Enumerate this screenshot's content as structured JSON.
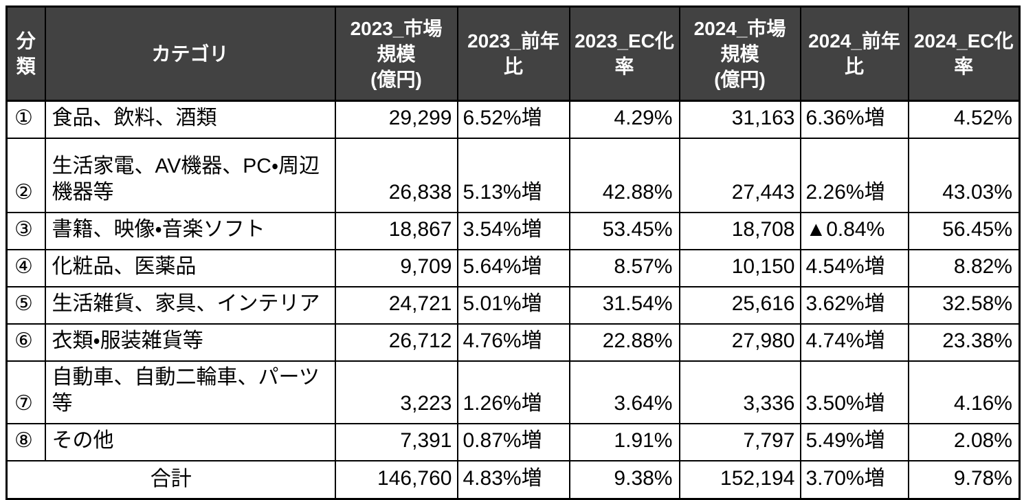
{
  "colors": {
    "header_bg": "#424242",
    "header_text": "#ffffff",
    "border": "#000000",
    "body_bg": "#ffffff",
    "text": "#000000"
  },
  "table": {
    "header": {
      "labels": [
        "分類",
        "カテゴリ",
        "2023_市場\n規模\n(億円)",
        "2023_前年\n比",
        "2023_EC化\n率",
        "2024_市場\n規模\n(億円)",
        "2024_前年\n比",
        "2024_EC化\n率"
      ]
    },
    "rows": [
      {
        "no": "①",
        "category": "食品、飲料、酒類",
        "tall": false,
        "v": [
          "29,299",
          "6.52%増",
          "4.29%",
          "31,163",
          "6.36%増",
          "4.52%"
        ]
      },
      {
        "no": "②",
        "category": "生活家電、AV機器、PC・周辺\n機器等",
        "tall": true,
        "v": [
          "26,838",
          "5.13%増",
          "42.88%",
          "27,443",
          "2.26%増",
          "43.03%"
        ]
      },
      {
        "no": "③",
        "category": "書籍、映像・音楽ソフト",
        "tall": false,
        "v": [
          "18,867",
          "3.54%増",
          "53.45%",
          "18,708",
          "▲0.84%",
          "56.45%"
        ]
      },
      {
        "no": "④",
        "category": "化粧品、医薬品",
        "tall": false,
        "v": [
          "9,709",
          "5.64%増",
          "8.57%",
          "10,150",
          "4.54%増",
          "8.82%"
        ]
      },
      {
        "no": "⑤",
        "category": "生活雑貨、家具、インテリア",
        "tall": false,
        "v": [
          "24,721",
          "5.01%増",
          "31.54%",
          "25,616",
          "3.62%増",
          "32.58%"
        ]
      },
      {
        "no": "⑥",
        "category": "衣類・服装雑貨等",
        "tall": false,
        "v": [
          "26,712",
          "4.76%増",
          "22.88%",
          "27,980",
          "4.74%増",
          "23.38%"
        ]
      },
      {
        "no": "⑦",
        "category": "自動車、自動二輪車、パーツ等",
        "tall": false,
        "v": [
          "3,223",
          "1.26%増",
          "3.64%",
          "3,336",
          "3.50%増",
          "4.16%"
        ]
      },
      {
        "no": "⑧",
        "category": "その他",
        "tall": false,
        "v": [
          "7,391",
          "0.87%増",
          "1.91%",
          "7,797",
          "5.49%増",
          "2.08%"
        ]
      }
    ],
    "total": {
      "label": "合計",
      "v": [
        "146,760",
        "4.83%増",
        "9.38%",
        "152,194",
        "3.70%増",
        "9.78%"
      ]
    }
  },
  "chart_data": {
    "type": "table",
    "columns": [
      "分類",
      "カテゴリ",
      "2023_市場規模(億円)",
      "2023_前年比",
      "2023_EC化率",
      "2024_市場規模(億円)",
      "2024_前年比",
      "2024_EC化率"
    ],
    "categories": [
      "食品、飲料、酒類",
      "生活家電、AV機器、PC・周辺機器等",
      "書籍、映像・音楽ソフト",
      "化粧品、医薬品",
      "生活雑貨、家具、インテリア",
      "衣類・服装雑貨等",
      "自動車、自動二輪車、パーツ等",
      "その他"
    ],
    "classification_numbers": [
      "①",
      "②",
      "③",
      "④",
      "⑤",
      "⑥",
      "⑦",
      "⑧"
    ],
    "series": [
      {
        "name": "2023_市場規模(億円)",
        "values": [
          29299,
          26838,
          18867,
          9709,
          24721,
          26712,
          3223,
          7391
        ]
      },
      {
        "name": "2023_前年比(%)",
        "values": [
          6.52,
          5.13,
          3.54,
          5.64,
          5.01,
          4.76,
          1.26,
          0.87
        ]
      },
      {
        "name": "2023_EC化率(%)",
        "values": [
          4.29,
          42.88,
          53.45,
          8.57,
          31.54,
          22.88,
          3.64,
          1.91
        ]
      },
      {
        "name": "2024_市場規模(億円)",
        "values": [
          31163,
          27443,
          18708,
          10150,
          25616,
          27980,
          3336,
          7797
        ]
      },
      {
        "name": "2024_前年比(%)",
        "values": [
          6.36,
          2.26,
          -0.84,
          4.54,
          3.62,
          4.74,
          3.5,
          5.49
        ]
      },
      {
        "name": "2024_EC化率(%)",
        "values": [
          4.52,
          43.03,
          56.45,
          8.82,
          32.58,
          23.38,
          4.16,
          2.08
        ]
      }
    ],
    "total_row": {
      "label": "合計",
      "市場規模_2023": 146760,
      "前年比_2023": 4.83,
      "EC化率_2023": 9.38,
      "市場規模_2024": 152194,
      "前年比_2024": 3.7,
      "EC化率_2024": 9.78
    },
    "notes": "▲ indicates a negative (decrease); 増 indicates an increase"
  }
}
